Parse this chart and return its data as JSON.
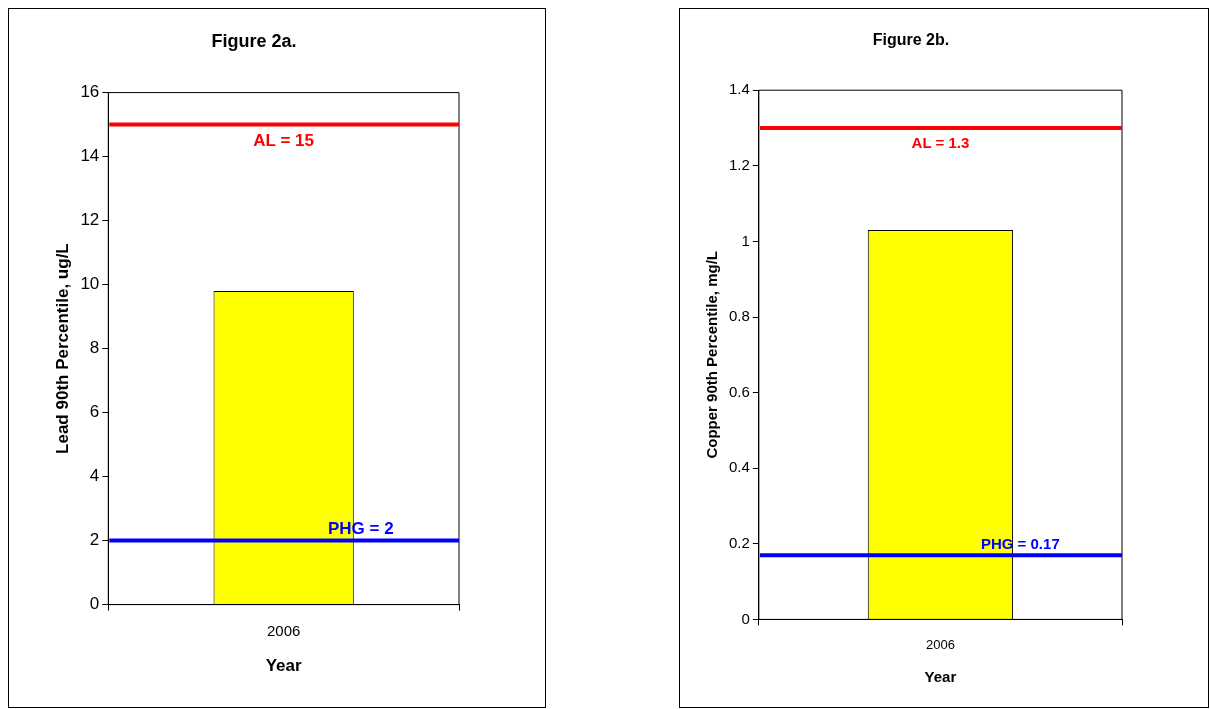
{
  "chart_data": [
    {
      "type": "bar",
      "title": "Figure 2a.",
      "xlabel": "Year",
      "ylabel": "Lead 90th Percentile, ug/L",
      "categories": [
        "2006"
      ],
      "values": [
        9.8
      ],
      "color": "#ffff00",
      "ylim": [
        0,
        16
      ],
      "yticks": [
        0,
        2,
        4,
        6,
        8,
        10,
        12,
        14,
        16
      ],
      "ref_lines": [
        {
          "axis": "y",
          "value": 15,
          "label": "AL = 15",
          "color": "#ff0000"
        },
        {
          "axis": "y",
          "value": 2,
          "label": "PHG = 2",
          "color": "#0000ff"
        }
      ]
    },
    {
      "type": "bar",
      "title": "Figure 2b.",
      "xlabel": "Year",
      "ylabel": "Copper 90th Percentile, mg/L",
      "categories": [
        "2006"
      ],
      "values": [
        1.03
      ],
      "color": "#ffff00",
      "ylim": [
        0,
        1.4
      ],
      "yticks": [
        0,
        0.2,
        0.4,
        0.6,
        0.8,
        1,
        1.2,
        1.4
      ],
      "ref_lines": [
        {
          "axis": "y",
          "value": 1.3,
          "label": "AL = 1.3",
          "color": "#ff0000"
        },
        {
          "axis": "y",
          "value": 0.17,
          "label": "PHG = 0.17",
          "color": "#0000ff"
        }
      ]
    }
  ]
}
